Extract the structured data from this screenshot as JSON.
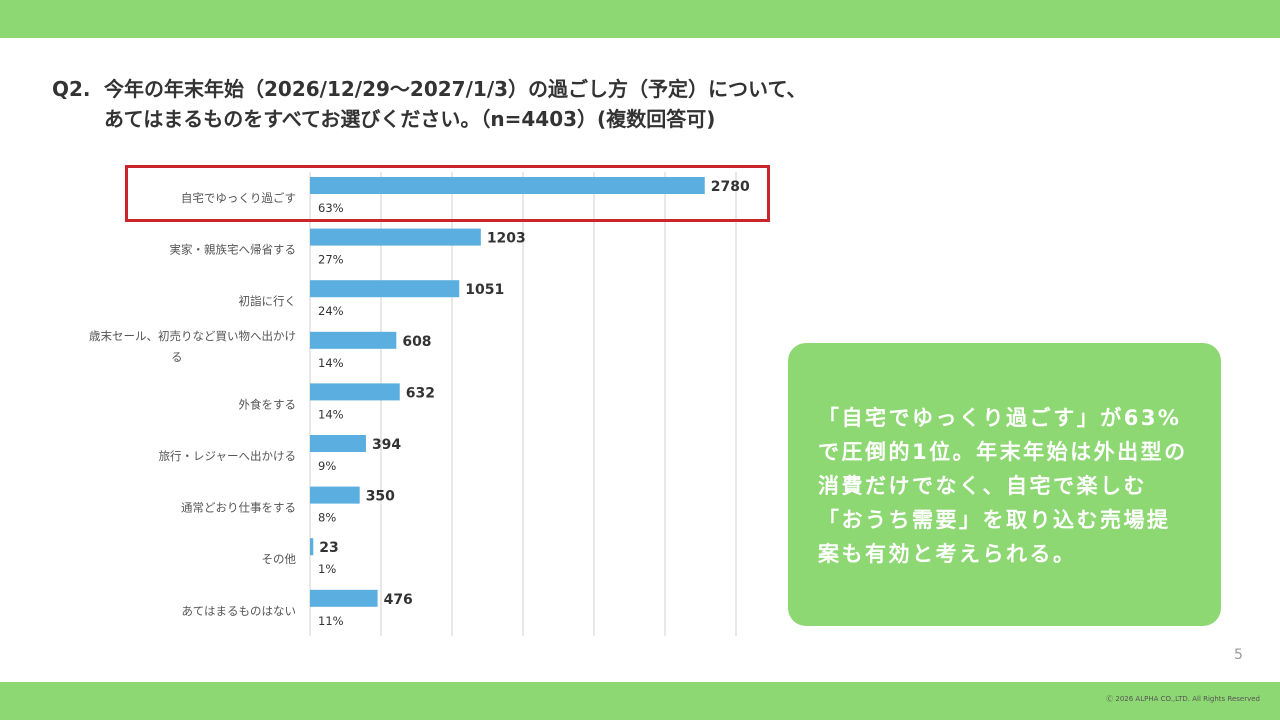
{
  "colors": {
    "band": "#8ed873",
    "bar": "#5aaee0",
    "grid": "#d0d0d0",
    "highlight": "#c8262b",
    "callout_bg": "#8ed873"
  },
  "title": {
    "number": "Q2.",
    "line1": "今年の年末年始（2026/12/29～2027/1/3）の過ごし方（予定）について、",
    "line2": "あてはまるものをすべてお選びください。（n=4403）(複数回答可)"
  },
  "chart_data": {
    "type": "bar",
    "orientation": "horizontal",
    "title": "",
    "xlabel": "",
    "ylabel": "",
    "xlim": [
      0,
      3000
    ],
    "grid": true,
    "categories": [
      [
        "自宅でゆっくり過ごす"
      ],
      [
        "実家・親族宅へ帰省する"
      ],
      [
        "初詣に行く"
      ],
      [
        "歳末セール、初売りなど買い物へ出かけ",
        "る"
      ],
      [
        "外食をする"
      ],
      [
        "旅行・レジャーへ出かける"
      ],
      [
        "通常どおり仕事をする"
      ],
      [
        "その他"
      ],
      [
        "あてはまるものはない"
      ]
    ],
    "values": [
      2780,
      1203,
      1051,
      608,
      632,
      394,
      350,
      23,
      476
    ],
    "value_labels": [
      "2780",
      "1203",
      "1051",
      "608",
      "632",
      "394",
      "350",
      "23",
      "476"
    ],
    "percent_labels": [
      "63%",
      "27%",
      "24%",
      "14%",
      "14%",
      "9%",
      "8%",
      "1%",
      "11%"
    ],
    "highlighted_index": 0
  },
  "callout": {
    "text": "「自宅でゆっくり過ごす」が63%で圧倒的1位。年末年始は外出型の消費だけでなく、自宅で楽しむ「おうち需要」を取り込む売場提案も有効と考えられる。"
  },
  "page_number": "5",
  "copyright": "Ⓒ 2026 ALPHA CO.,LTD. All Rights Reserved"
}
